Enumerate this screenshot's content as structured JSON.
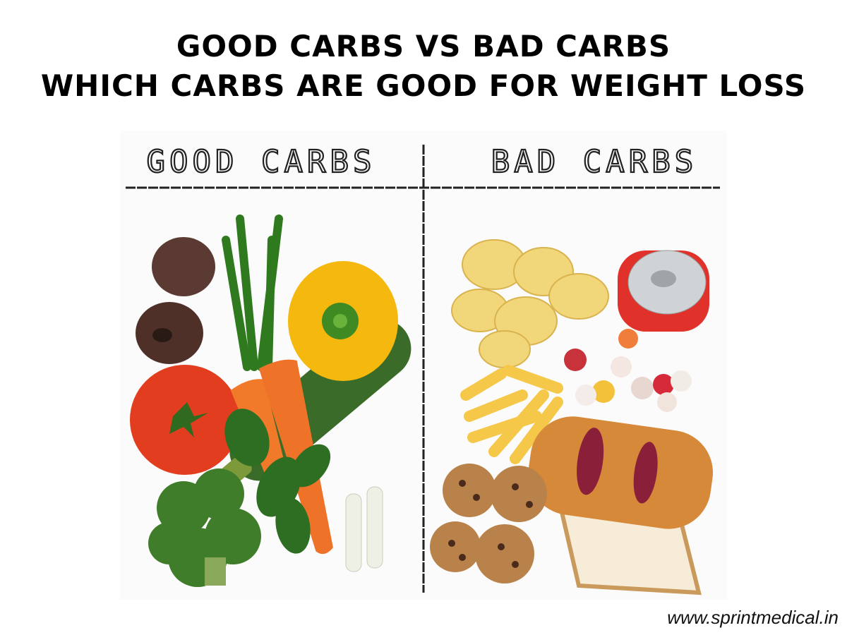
{
  "title": {
    "line1": "GOOD CARBS VS BAD CARBS",
    "line2": "WHICH CARBS ARE GOOD FOR WEIGHT LOSS"
  },
  "columns": {
    "left": "GOOD CARBS",
    "right": "BAD CARBS"
  },
  "footer": {
    "website": "www.sprintmedical.in"
  }
}
